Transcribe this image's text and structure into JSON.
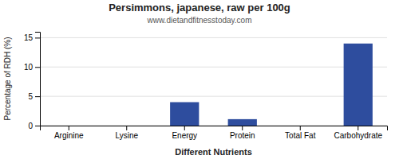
{
  "chart_data": {
    "type": "bar",
    "title": "Persimmons, japanese, raw per 100g",
    "subtitle": "www.dietandfitnesstoday.com",
    "xlabel": "Different Nutrients",
    "ylabel": "Percentage of RDH (%)",
    "categories": [
      "Arginine",
      "Lysine",
      "Energy",
      "Protein",
      "Total Fat",
      "Carbohydrate"
    ],
    "values": [
      0.0,
      0.0,
      4.0,
      1.1,
      0.0,
      14.0
    ],
    "color": "#2e4d9e",
    "ylim": [
      0,
      16
    ],
    "yticks": [
      0,
      5,
      10,
      15
    ],
    "grid": true
  }
}
